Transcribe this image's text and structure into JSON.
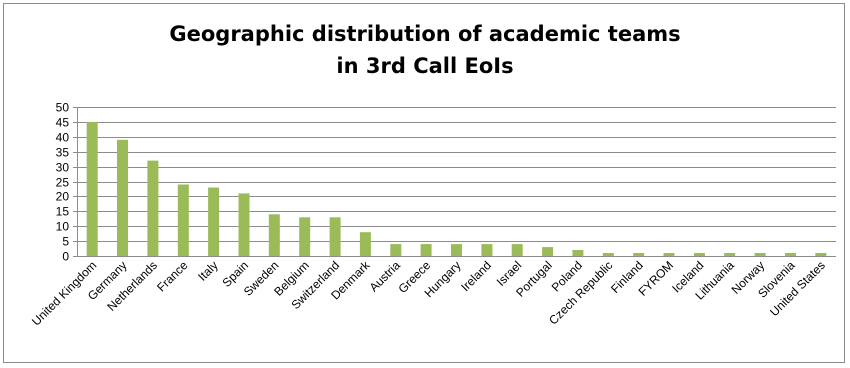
{
  "chart_data": {
    "type": "bar",
    "title": [
      "Geographic distribution of academic teams",
      "in 3rd Call EoIs"
    ],
    "xlabel": "",
    "ylabel": "",
    "ylim": [
      0,
      50
    ],
    "yticks": [
      0,
      5,
      10,
      15,
      20,
      25,
      30,
      35,
      40,
      45,
      50
    ],
    "grid": true,
    "legend": "none",
    "bar_color": "#9bbb59",
    "categories": [
      "United Kingdom",
      "Germany",
      "Netherlands",
      "France",
      "Italy",
      "Spain",
      "Sweden",
      "Belgium",
      "Switzerland",
      "Denmark",
      "Austria",
      "Greece",
      "Hungary",
      "Ireland",
      "Israel",
      "Portugal",
      "Poland",
      "Czech Republic",
      "Finland",
      "FYROM",
      "Iceland",
      "Lithuania",
      "Norway",
      "Slovenia",
      "United States"
    ],
    "values": [
      45,
      39,
      32,
      24,
      23,
      21,
      14,
      13,
      13,
      8,
      4,
      4,
      4,
      4,
      4,
      3,
      2,
      1,
      1,
      1,
      1,
      1,
      1,
      1,
      1
    ]
  }
}
